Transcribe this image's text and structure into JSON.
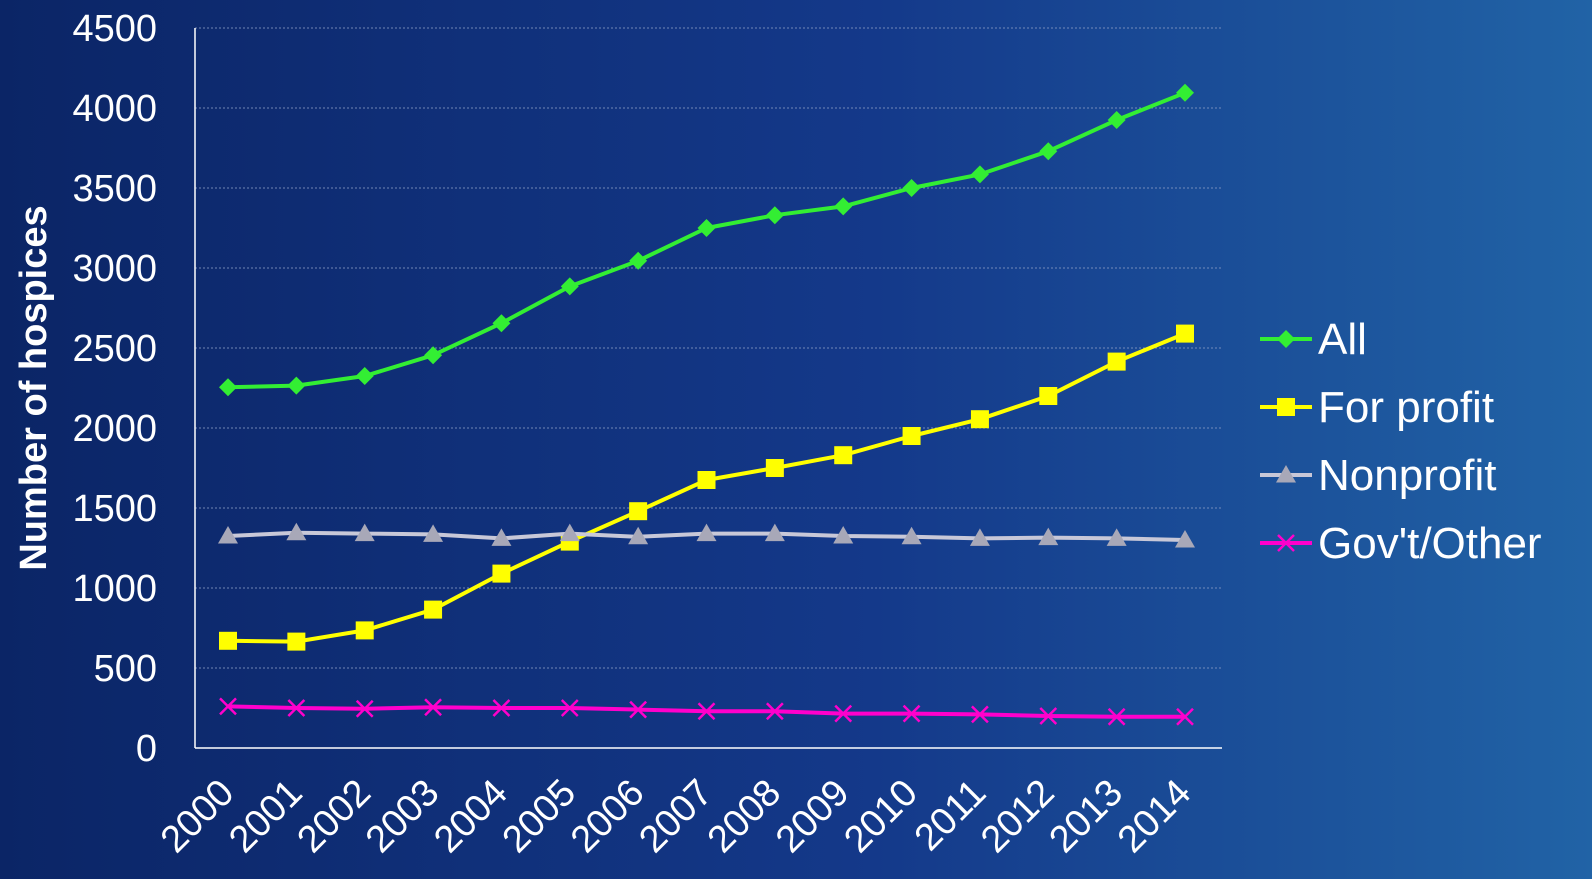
{
  "chart_data": {
    "type": "line",
    "title": "",
    "xlabel": "",
    "ylabel": "Number of hospices",
    "ylim": [
      0,
      4500
    ],
    "yticks": [
      0,
      500,
      1000,
      1500,
      2000,
      2500,
      3000,
      3500,
      4000,
      4500
    ],
    "grid": true,
    "legend_position": "right",
    "categories": [
      "2000",
      "2001",
      "2002",
      "2003",
      "2004",
      "2005",
      "2006",
      "2007",
      "2008",
      "2009",
      "2010",
      "2011",
      "2012",
      "2013",
      "2014"
    ],
    "series": [
      {
        "name": "All",
        "color": "#33ee33",
        "marker": "diamond",
        "values": [
          2255,
          2265,
          2325,
          2455,
          2655,
          2885,
          3045,
          3250,
          3330,
          3385,
          3500,
          3585,
          3730,
          3925,
          4095
        ]
      },
      {
        "name": "For profit",
        "color": "#ffff00",
        "marker": "square",
        "values": [
          670,
          665,
          735,
          865,
          1090,
          1290,
          1480,
          1675,
          1750,
          1830,
          1950,
          2055,
          2200,
          2415,
          2590
        ]
      },
      {
        "name": "Nonprofit",
        "color": "#c8c8d8",
        "marker": "triangle",
        "values": [
          1325,
          1345,
          1340,
          1335,
          1310,
          1340,
          1320,
          1340,
          1340,
          1325,
          1320,
          1310,
          1315,
          1310,
          1300
        ]
      },
      {
        "name": "Gov't/Other",
        "color": "#ff00cc",
        "marker": "x",
        "values": [
          260,
          250,
          245,
          255,
          250,
          250,
          240,
          230,
          230,
          215,
          215,
          210,
          200,
          195,
          195
        ]
      }
    ]
  }
}
